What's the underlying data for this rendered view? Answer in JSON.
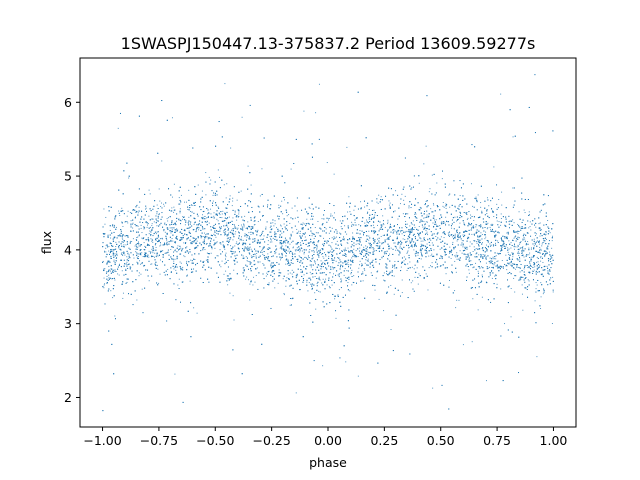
{
  "chart_data": {
    "type": "scatter",
    "title": "1SWASPJ150447.13-375837.2 Period 13609.59277s",
    "xlabel": "phase",
    "ylabel": "flux",
    "xlim": [
      -1.1,
      1.1
    ],
    "ylim": [
      1.6,
      6.6
    ],
    "x_ticks": [
      -1.0,
      -0.75,
      -0.5,
      -0.25,
      0.0,
      0.25,
      0.5,
      0.75,
      1.0
    ],
    "x_tick_labels": [
      "−1.00",
      "−0.75",
      "−0.50",
      "−0.25",
      "0.00",
      "0.25",
      "0.50",
      "0.75",
      "1.00"
    ],
    "y_ticks": [
      2,
      3,
      4,
      5,
      6
    ],
    "y_tick_labels": [
      "2",
      "3",
      "4",
      "5",
      "6"
    ],
    "grid": false,
    "legend": "none",
    "point_color": "#1f77b4",
    "series": [
      {
        "x_range": [
          -1.0,
          1.0
        ],
        "trend": {
          "x": [
            -1.0,
            -0.75,
            -0.5,
            -0.25,
            0.0,
            0.25,
            0.5,
            0.75,
            1.0
          ],
          "y": [
            3.95,
            4.15,
            4.22,
            4.05,
            3.92,
            4.12,
            4.2,
            4.05,
            3.95
          ]
        },
        "typical_spread": 0.3,
        "outlier_range": [
          1.8,
          6.4
        ]
      }
    ]
  }
}
